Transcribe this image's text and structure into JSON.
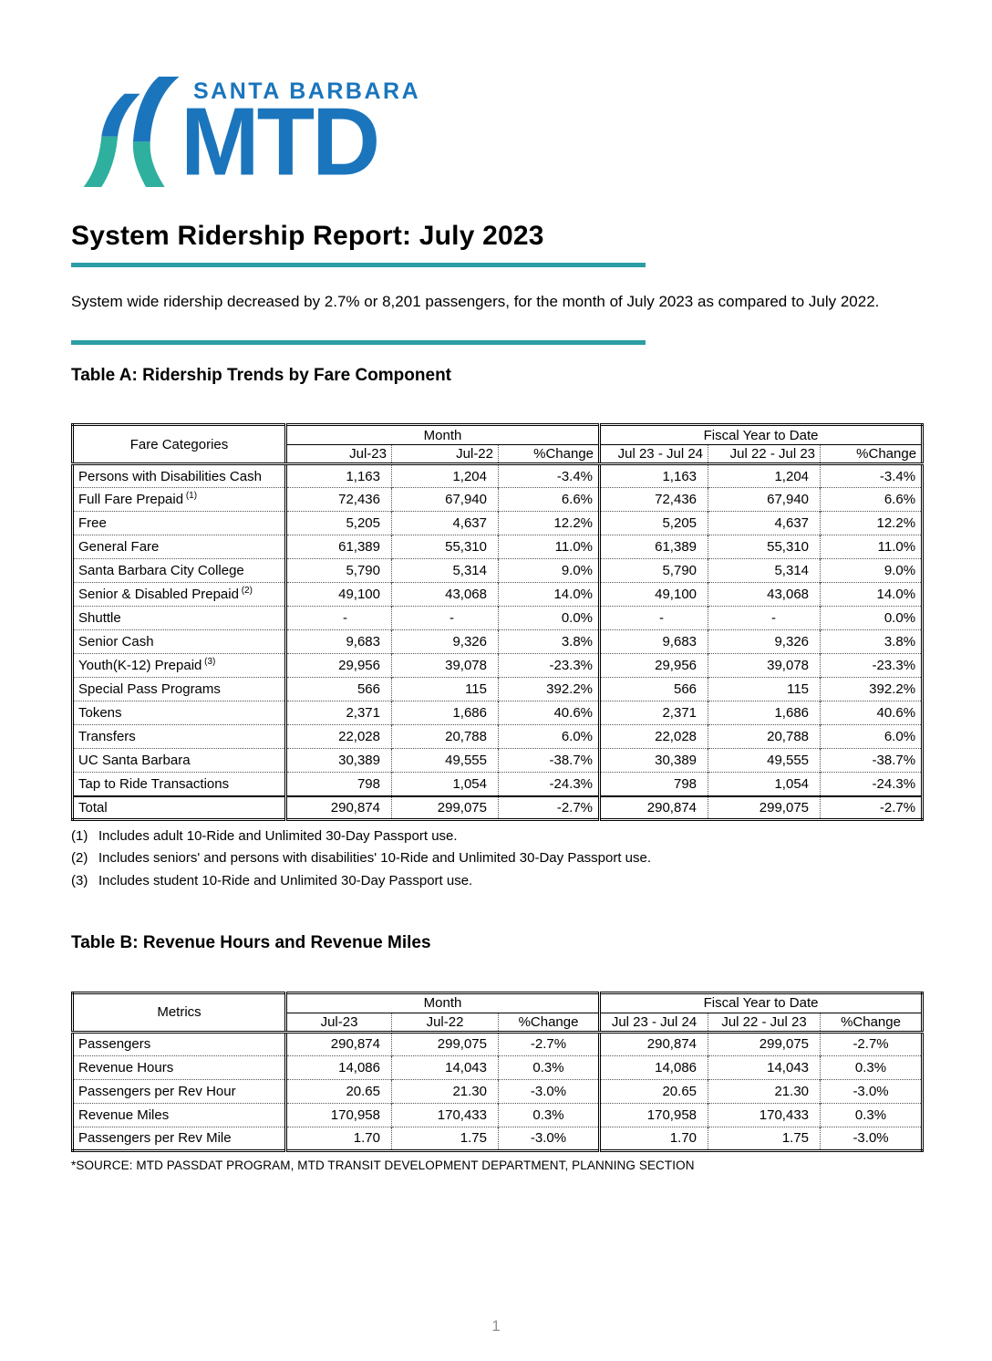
{
  "logo": {
    "top_text": "SANTA BARBARA",
    "main_text": "MTD",
    "blue": "#1B75BC",
    "teal": "#2FAF9E"
  },
  "report": {
    "title": "System Ridership Report: July 2023",
    "subtitle": "System wide ridership decreased by 2.7% or 8,201 passengers, for the month of July 2023 as compared to July 2022.",
    "accent_color": "#2A9DA5",
    "source": "*SOURCE: MTD PASSDAT PROGRAM, MTD TRANSIT DEVELOPMENT DEPARTMENT, PLANNING SECTION",
    "page_number": "1"
  },
  "table_a": {
    "heading": "Table A: Ridership Trends by Fare Component",
    "label_header": "Fare Categories",
    "groups": [
      {
        "label": "Month",
        "cols": [
          "Jul-23",
          "Jul-22",
          "%Change"
        ]
      },
      {
        "label": "Fiscal Year to Date",
        "cols": [
          "Jul 23 - Jul 24",
          "Jul 22 - Jul 23",
          "%Change"
        ]
      }
    ],
    "header2_align": "right",
    "pct_align": "right",
    "rows": [
      {
        "label": "Persons with Disabilities Cash",
        "values": [
          "1,163",
          "1,204",
          "-3.4%",
          "1,163",
          "1,204",
          "-3.4%"
        ]
      },
      {
        "label": "Full Fare Prepaid",
        "sup": "(1)",
        "values": [
          "72,436",
          "67,940",
          "6.6%",
          "72,436",
          "67,940",
          "6.6%"
        ]
      },
      {
        "label": "Free",
        "values": [
          "5,205",
          "4,637",
          "12.2%",
          "5,205",
          "4,637",
          "12.2%"
        ]
      },
      {
        "label": "General Fare",
        "values": [
          "61,389",
          "55,310",
          "11.0%",
          "61,389",
          "55,310",
          "11.0%"
        ]
      },
      {
        "label": "Santa Barbara City College",
        "values": [
          "5,790",
          "5,314",
          "9.0%",
          "5,790",
          "5,314",
          "9.0%"
        ]
      },
      {
        "label": "Senior & Disabled Prepaid",
        "sup": "(2)",
        "values": [
          "49,100",
          "43,068",
          "14.0%",
          "49,100",
          "43,068",
          "14.0%"
        ]
      },
      {
        "label": "Shuttle",
        "values": [
          "-",
          "-",
          "0.0%",
          "-",
          "-",
          "0.0%"
        ]
      },
      {
        "label": "Senior Cash",
        "values": [
          "9,683",
          "9,326",
          "3.8%",
          "9,683",
          "9,326",
          "3.8%"
        ]
      },
      {
        "label": "Youth(K-12) Prepaid",
        "sup": "(3)",
        "values": [
          "29,956",
          "39,078",
          "-23.3%",
          "29,956",
          "39,078",
          "-23.3%"
        ]
      },
      {
        "label": "Special Pass Programs",
        "values": [
          "566",
          "115",
          "392.2%",
          "566",
          "115",
          "392.2%"
        ]
      },
      {
        "label": "Tokens",
        "values": [
          "2,371",
          "1,686",
          "40.6%",
          "2,371",
          "1,686",
          "40.6%"
        ]
      },
      {
        "label": "Transfers",
        "values": [
          "22,028",
          "20,788",
          "6.0%",
          "22,028",
          "20,788",
          "6.0%"
        ]
      },
      {
        "label": "UC Santa Barbara",
        "values": [
          "30,389",
          "49,555",
          "-38.7%",
          "30,389",
          "49,555",
          "-38.7%"
        ]
      },
      {
        "label": "Tap to Ride Transactions",
        "values": [
          "798",
          "1,054",
          "-24.3%",
          "798",
          "1,054",
          "-24.3%"
        ]
      },
      {
        "label": "Total",
        "is_total": true,
        "values": [
          "290,874",
          "299,075",
          "-2.7%",
          "290,874",
          "299,075",
          "-2.7%"
        ]
      }
    ],
    "footnotes": [
      {
        "num": "(1)",
        "text": "Includes adult 10-Ride and Unlimited 30-Day Passport use."
      },
      {
        "num": "(2)",
        "text": "Includes seniors' and persons with disabilities' 10-Ride and Unlimited 30-Day Passport use."
      },
      {
        "num": "(3)",
        "text": "Includes student 10-Ride and Unlimited 30-Day Passport use."
      }
    ]
  },
  "table_b": {
    "heading": "Table B: Revenue Hours and Revenue Miles",
    "label_header": "Metrics",
    "groups": [
      {
        "label": "Month",
        "cols": [
          "Jul-23",
          "Jul-22",
          "%Change"
        ]
      },
      {
        "label": "Fiscal Year to Date",
        "cols": [
          "Jul 23 - Jul 24",
          "Jul 22 - Jul 23",
          "%Change"
        ]
      }
    ],
    "header2_align": "center",
    "pct_align": "center",
    "rows": [
      {
        "label": "Passengers",
        "values": [
          "290,874",
          "299,075",
          "-2.7%",
          "290,874",
          "299,075",
          "-2.7%"
        ]
      },
      {
        "label": "Revenue Hours",
        "values": [
          "14,086",
          "14,043",
          "0.3%",
          "14,086",
          "14,043",
          "0.3%"
        ]
      },
      {
        "label": "Passengers per Rev Hour",
        "values": [
          "20.65",
          "21.30",
          "-3.0%",
          "20.65",
          "21.30",
          "-3.0%"
        ]
      },
      {
        "label": "Revenue Miles",
        "values": [
          "170,958",
          "170,433",
          "0.3%",
          "170,958",
          "170,433",
          "0.3%"
        ]
      },
      {
        "label": "Passengers per Rev Mile",
        "values": [
          "1.70",
          "1.75",
          "-3.0%",
          "1.70",
          "1.75",
          "-3.0%"
        ]
      }
    ]
  }
}
